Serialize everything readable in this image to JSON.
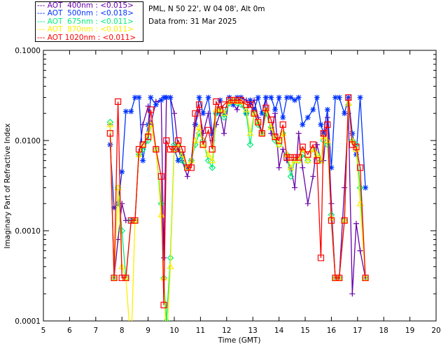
{
  "chart_data": {
    "type": "line",
    "title": "PML, N 50 22', W 04 08', Alt 0m",
    "subtitle": "Data from: 31 Mar 2025",
    "xlabel": "Time (GMT)",
    "ylabel": "Imaginary Part of Refractive Index",
    "xlim": [
      5,
      20
    ],
    "ylim": [
      0.0001,
      0.1
    ],
    "yscale": "log",
    "xticks": [
      "5",
      "6",
      "7",
      "8",
      "9",
      "10",
      "11",
      "12",
      "13",
      "14",
      "15",
      "16",
      "17",
      "18",
      "19",
      "20"
    ],
    "yticks": [
      {
        "v": 0.0001,
        "label": "0.0001"
      },
      {
        "v": 0.001,
        "label": "0.0010"
      },
      {
        "v": 0.01,
        "label": "0.0100"
      },
      {
        "v": 0.1,
        "label": "0.1000"
      }
    ],
    "legend_position": "top-left-outside",
    "x": [
      7.55,
      7.7,
      7.85,
      8.0,
      8.15,
      8.35,
      8.5,
      8.65,
      8.8,
      9.0,
      9.1,
      9.3,
      9.5,
      9.6,
      9.7,
      9.85,
      10.0,
      10.15,
      10.3,
      10.5,
      10.65,
      10.8,
      10.95,
      11.1,
      11.3,
      11.45,
      11.6,
      11.75,
      11.9,
      12.1,
      12.25,
      12.4,
      12.55,
      12.75,
      12.9,
      13.05,
      13.2,
      13.35,
      13.5,
      13.7,
      13.85,
      14.0,
      14.15,
      14.3,
      14.45,
      14.6,
      14.75,
      14.9,
      15.1,
      15.3,
      15.45,
      15.6,
      15.7,
      15.85,
      16.0,
      16.15,
      16.3,
      16.5,
      16.65,
      16.8,
      16.95,
      17.1,
      17.3
    ],
    "series": [
      {
        "name": "AOT  400nm : <0.015>",
        "color": "#6600aa",
        "marker": "plus",
        "values": [
          0.015,
          0.0003,
          0.0008,
          0.002,
          0.0013,
          0.0013,
          0.0013,
          0.007,
          0.015,
          0.024,
          0.015,
          0.027,
          0.028,
          0.0005,
          0.03,
          0.03,
          0.02,
          0.008,
          0.006,
          0.004,
          0.006,
          0.015,
          0.022,
          0.012,
          0.02,
          0.01,
          0.015,
          0.02,
          0.012,
          0.03,
          0.025,
          0.022,
          0.03,
          0.028,
          0.025,
          0.028,
          0.018,
          0.012,
          0.03,
          0.012,
          0.02,
          0.005,
          0.008,
          0.006,
          0.005,
          0.003,
          0.012,
          0.005,
          0.002,
          0.004,
          0.009,
          0.006,
          0.006,
          0.018,
          0.002,
          0.0003,
          0.0003,
          0.003,
          0.02,
          0.0002,
          0.0012,
          0.0006,
          0.0003
        ]
      },
      {
        "name": "AOT  500nm : <0.018>",
        "color": "#0033ff",
        "marker": "star",
        "values": [
          0.009,
          0.0018,
          0.002,
          0.0045,
          0.021,
          0.021,
          0.03,
          0.03,
          0.006,
          0.015,
          0.03,
          0.025,
          0.028,
          0.03,
          0.03,
          0.03,
          0.008,
          0.006,
          0.007,
          0.005,
          0.006,
          0.015,
          0.03,
          0.02,
          0.03,
          0.012,
          0.02,
          0.028,
          0.02,
          0.03,
          0.025,
          0.03,
          0.03,
          0.02,
          0.028,
          0.022,
          0.03,
          0.02,
          0.03,
          0.03,
          0.022,
          0.03,
          0.018,
          0.03,
          0.03,
          0.028,
          0.03,
          0.015,
          0.018,
          0.022,
          0.03,
          0.015,
          0.012,
          0.022,
          0.005,
          0.03,
          0.03,
          0.02,
          0.03,
          0.012,
          0.007,
          0.03,
          0.003
        ]
      },
      {
        "name": "AOT  675nm : <0.011>",
        "color": "#00ee77",
        "marker": "diamond",
        "values": [
          0.016,
          0.0003,
          0.003,
          0.001,
          0.0003,
          0.0013,
          0.0013,
          0.007,
          0.008,
          0.01,
          0.015,
          0.008,
          0.002,
          0.0003,
          0.0001,
          0.0005,
          0.009,
          0.009,
          0.006,
          0.005,
          0.006,
          0.009,
          0.012,
          0.01,
          0.006,
          0.005,
          0.02,
          0.022,
          0.018,
          0.026,
          0.028,
          0.026,
          0.025,
          0.02,
          0.009,
          0.02,
          0.015,
          0.012,
          0.02,
          0.014,
          0.01,
          0.009,
          0.012,
          0.007,
          0.004,
          0.006,
          0.006,
          0.007,
          0.006,
          0.008,
          0.007,
          0.006,
          0.01,
          0.009,
          0.0015,
          0.0003,
          0.0003,
          0.0013,
          0.025,
          0.01,
          0.009,
          0.003,
          0.0003
        ]
      },
      {
        "name": "AOT  870nm : <0.011>",
        "color": "#ffee00",
        "marker": "triangle",
        "values": [
          0.015,
          0.0003,
          0.003,
          0.0004,
          0.0003,
          5e-05,
          0.0013,
          0.007,
          0.009,
          0.012,
          0.015,
          0.008,
          0.0015,
          0.0003,
          5e-05,
          0.0004,
          0.008,
          0.009,
          0.007,
          0.005,
          0.006,
          0.01,
          0.014,
          0.009,
          0.007,
          0.006,
          0.022,
          0.022,
          0.02,
          0.027,
          0.028,
          0.027,
          0.027,
          0.022,
          0.012,
          0.02,
          0.016,
          0.012,
          0.022,
          0.014,
          0.011,
          0.009,
          0.012,
          0.007,
          0.005,
          0.006,
          0.006,
          0.008,
          0.006,
          0.008,
          0.007,
          0.006,
          0.011,
          0.01,
          0.0014,
          0.0003,
          0.0003,
          0.0013,
          0.026,
          0.01,
          0.008,
          0.002,
          0.0003
        ]
      },
      {
        "name": "AOT 1020nm : <0.011>",
        "color": "#ff0000",
        "marker": "square",
        "values": [
          0.012,
          0.0003,
          0.027,
          0.0003,
          0.0003,
          0.0013,
          0.0013,
          0.008,
          0.009,
          0.011,
          0.022,
          0.008,
          0.004,
          0.00015,
          0.01,
          0.008,
          0.008,
          0.01,
          0.008,
          0.005,
          0.005,
          0.02,
          0.025,
          0.009,
          0.013,
          0.008,
          0.027,
          0.022,
          0.025,
          0.028,
          0.028,
          0.028,
          0.028,
          0.025,
          0.025,
          0.02,
          0.016,
          0.012,
          0.023,
          0.017,
          0.011,
          0.01,
          0.015,
          0.0065,
          0.0065,
          0.0065,
          0.0065,
          0.0085,
          0.007,
          0.009,
          0.006,
          0.0005,
          0.012,
          0.015,
          0.0013,
          0.0003,
          0.0003,
          0.0013,
          0.03,
          0.009,
          0.0085,
          0.005,
          0.0003
        ]
      }
    ]
  }
}
